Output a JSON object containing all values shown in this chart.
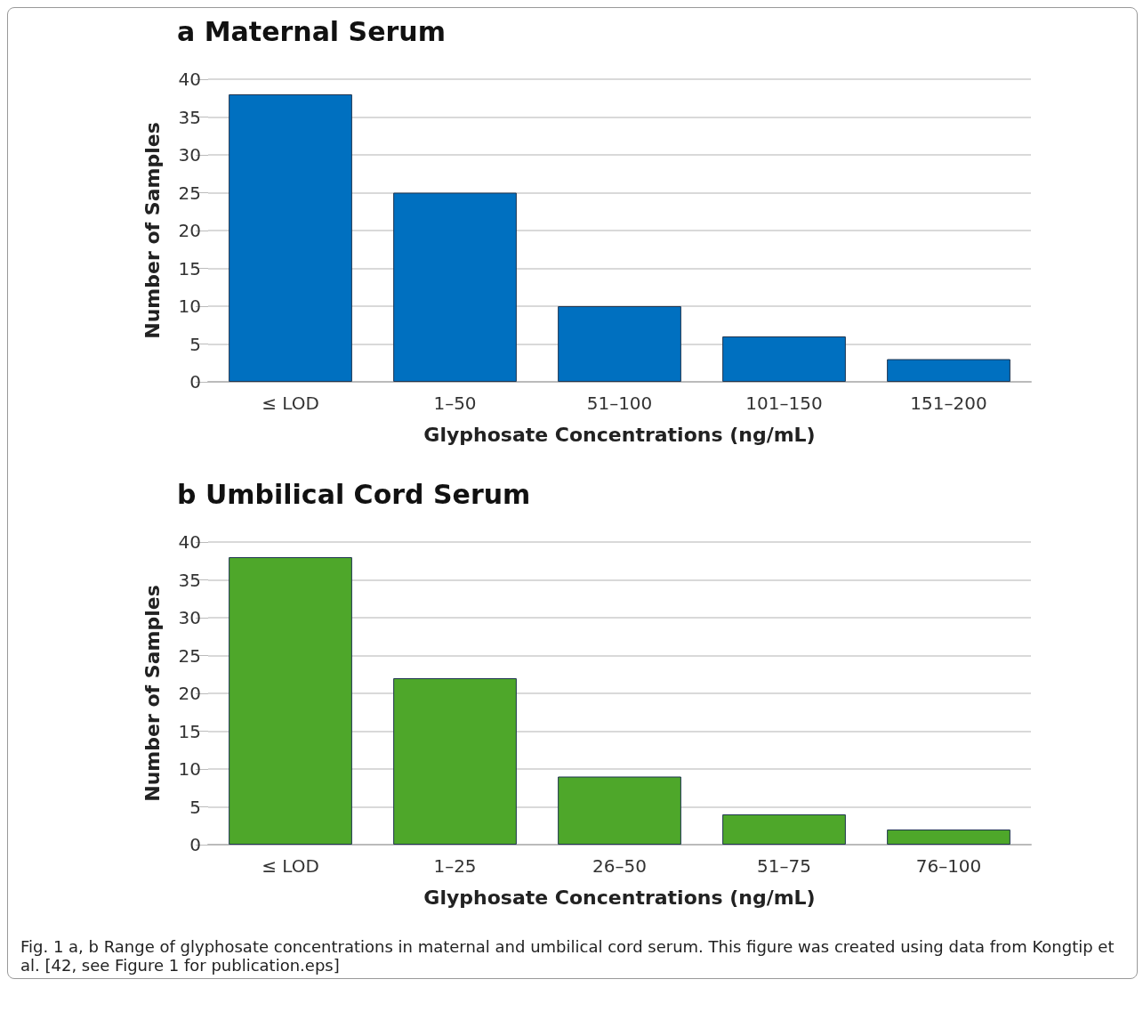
{
  "chart_data": [
    {
      "type": "bar",
      "title": "a Maternal Serum",
      "xlabel": "Glyphosate Concentrations (ng/mL)",
      "ylabel": "Number of Samples",
      "categories": [
        "≤ LOD",
        "1–50",
        "51–100",
        "101–150",
        "151–200"
      ],
      "series": [
        {
          "color": "#0070c0",
          "values": [
            38,
            25,
            10,
            6,
            3
          ]
        }
      ],
      "ylim": [
        0,
        40
      ],
      "yticks": [
        0,
        5,
        10,
        15,
        20,
        25,
        30,
        35,
        40
      ],
      "grid": "y"
    },
    {
      "type": "bar",
      "title": "b Umbilical Cord Serum",
      "xlabel": "Glyphosate Concentrations (ng/mL)",
      "ylabel": "Number of Samples",
      "categories": [
        "≤ LOD",
        "1–25",
        "26–50",
        "51–75",
        "76–100"
      ],
      "series": [
        {
          "color": "#4ea72a",
          "values": [
            38,
            22,
            9,
            4,
            2
          ]
        }
      ],
      "ylim": [
        0,
        40
      ],
      "yticks": [
        0,
        5,
        10,
        15,
        20,
        25,
        30,
        35,
        40
      ],
      "grid": "y",
      "annotations": [
        "Fig. 1  a, b Range of glyphosate concentrations in maternal and umbilical cord serum.  This figure was created using data from Kongtip et al. [42, see Figure 1 for publication.eps]"
      ]
    }
  ]
}
